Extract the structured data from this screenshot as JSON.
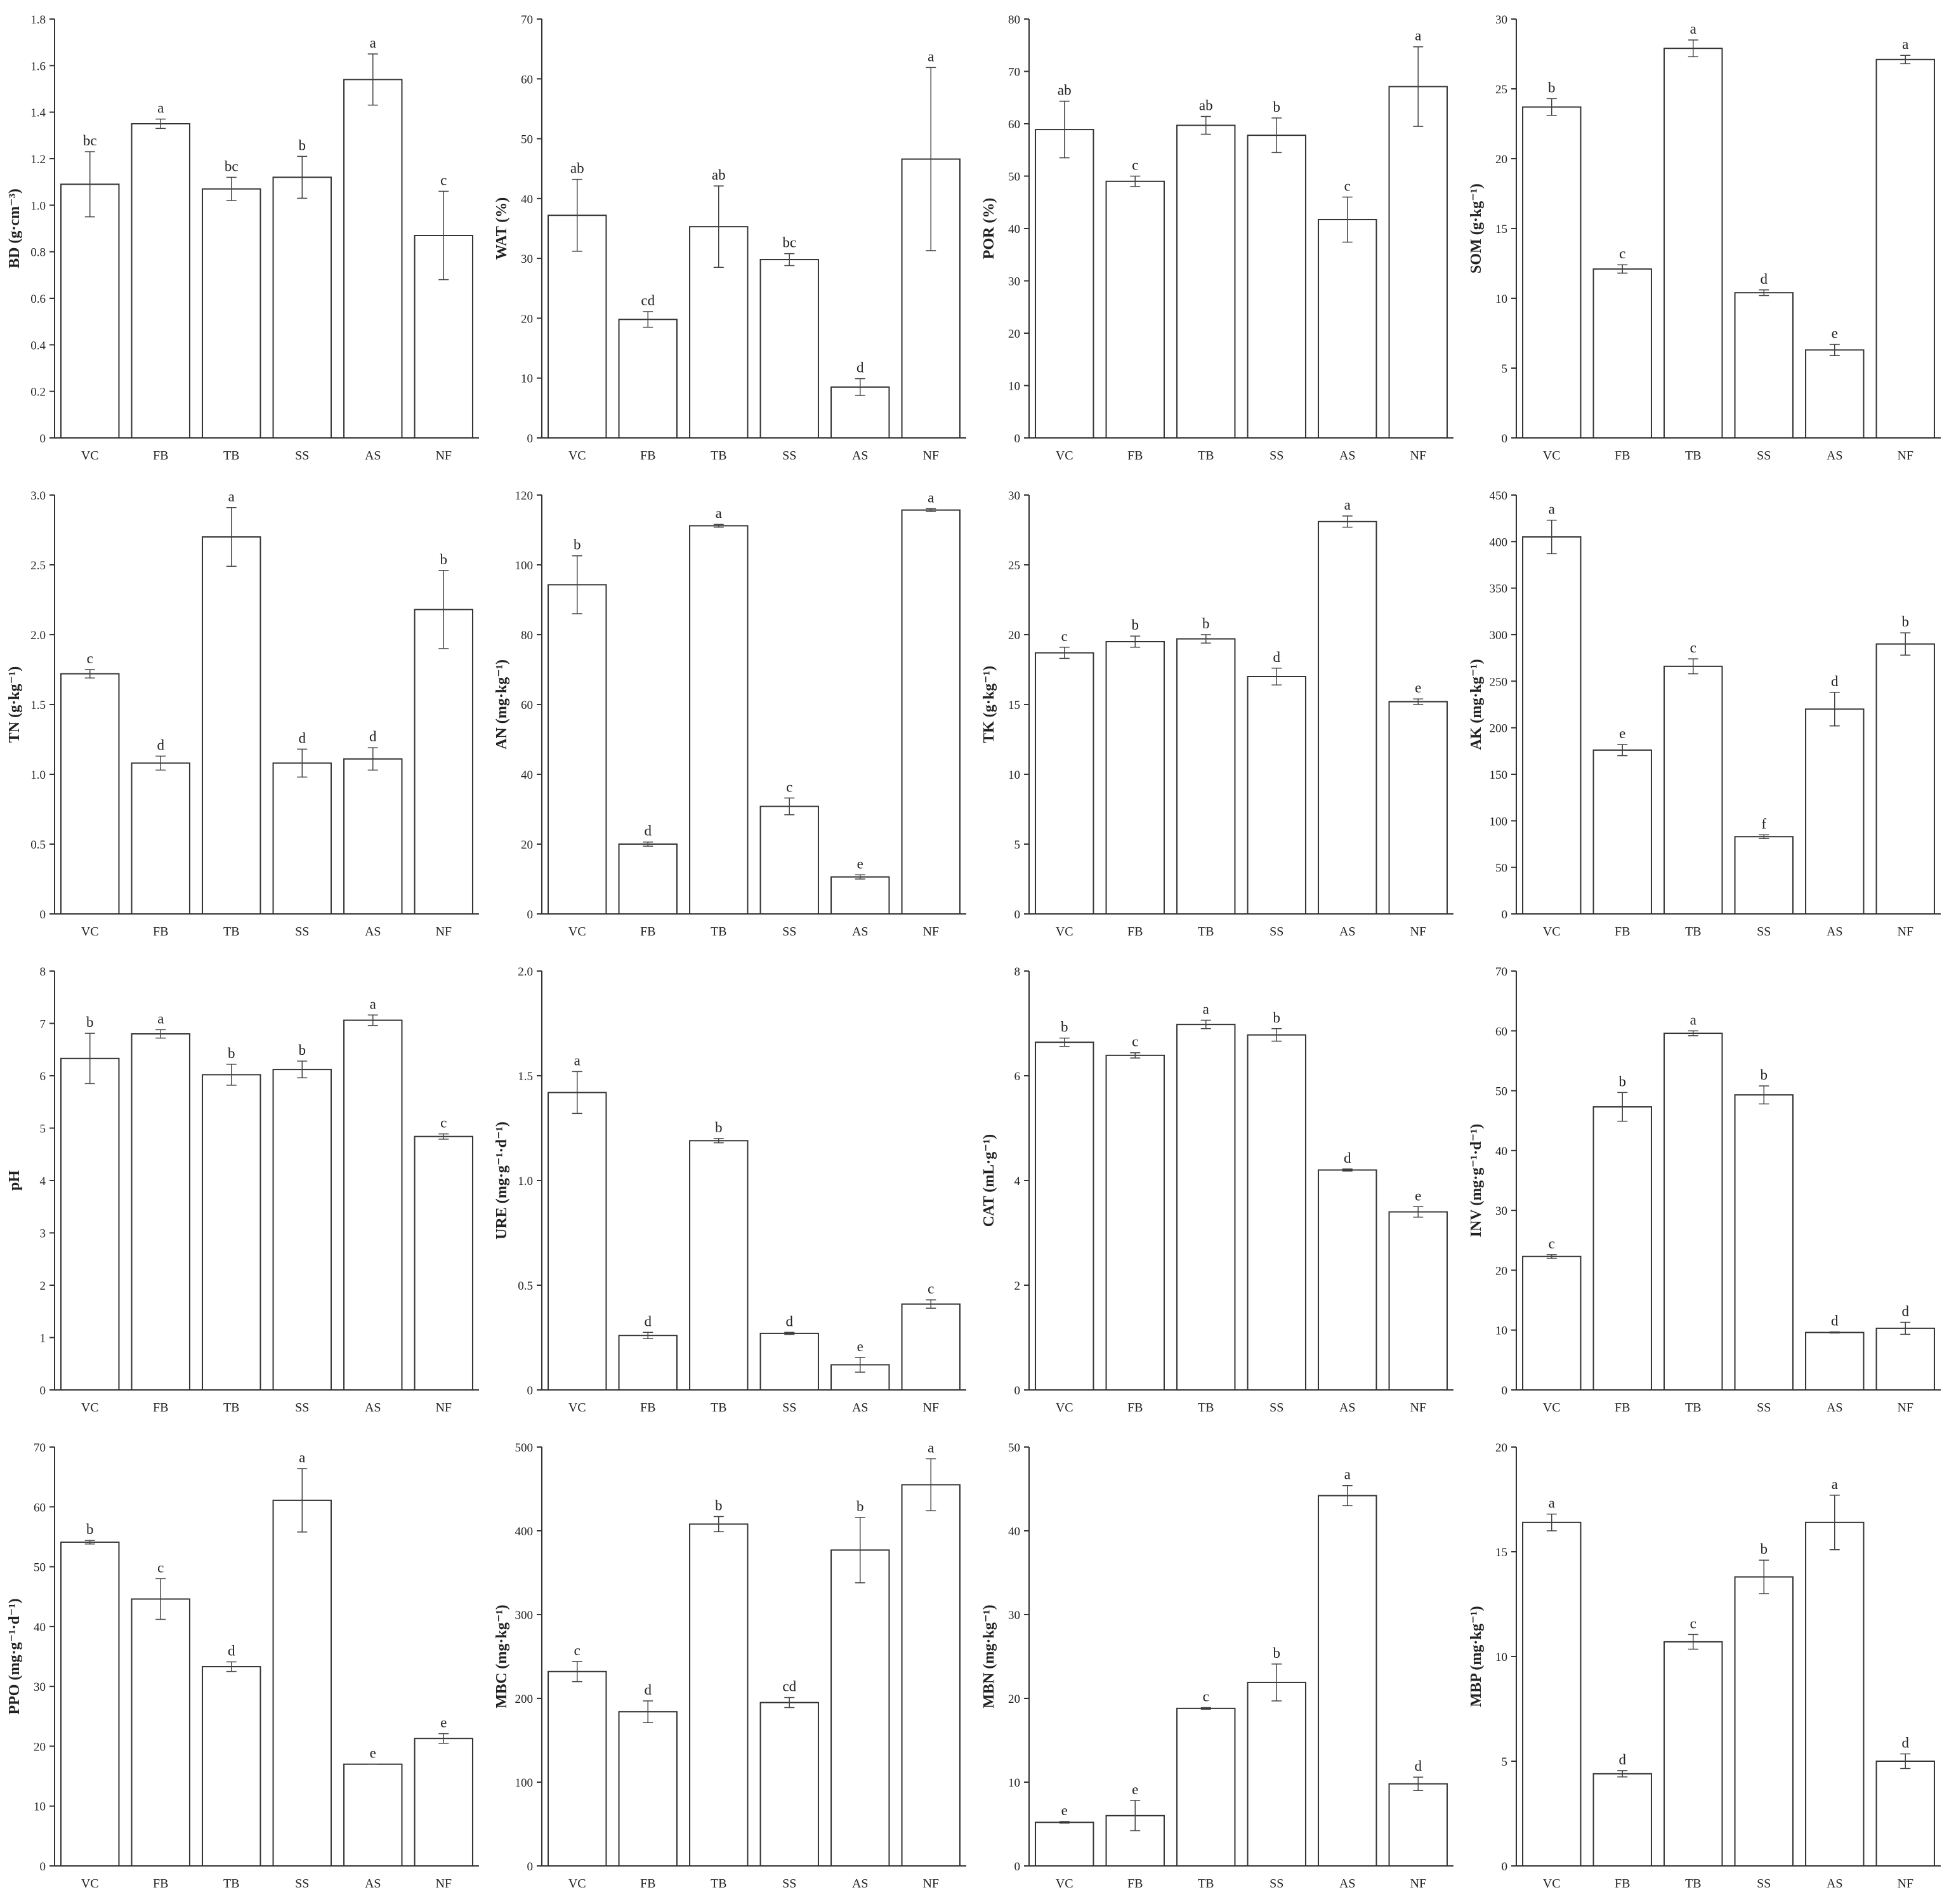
{
  "chart_data": [
    {
      "type": "bar",
      "categories": [
        "VC",
        "FB",
        "TB",
        "SS",
        "AS",
        "NF"
      ],
      "ylabel": "BD (g·cm⁻³)",
      "ylim": [
        0,
        1.8
      ],
      "yticks": [
        0,
        0.2,
        0.4,
        0.6,
        0.8,
        1.0,
        1.2,
        1.4,
        1.6,
        1.8
      ],
      "tick_labels": [
        "0",
        "0.2",
        "0.4",
        "0.6",
        "0.8",
        "1.0",
        "1.2",
        "1.4",
        "1.6",
        "1.8"
      ],
      "values": [
        1.09,
        1.35,
        1.07,
        1.12,
        1.54,
        0.87
      ],
      "errors": [
        0.14,
        0.02,
        0.05,
        0.09,
        0.11,
        0.19
      ],
      "significance": [
        "bc",
        "a",
        "bc",
        "b",
        "a",
        "c"
      ]
    },
    {
      "type": "bar",
      "categories": [
        "VC",
        "FB",
        "TB",
        "SS",
        "AS",
        "NF"
      ],
      "ylabel": "WAT (%)",
      "ylim": [
        0,
        70
      ],
      "yticks": [
        0,
        10,
        20,
        30,
        40,
        50,
        60,
        70
      ],
      "tick_labels": [
        "0",
        "10",
        "20",
        "30",
        "40",
        "50",
        "60",
        "70"
      ],
      "values": [
        37.2,
        19.8,
        35.3,
        29.8,
        8.5,
        46.6
      ],
      "errors": [
        6.0,
        1.3,
        6.8,
        1.0,
        1.4,
        15.3
      ],
      "significance": [
        "ab",
        "cd",
        "ab",
        "bc",
        "d",
        "a"
      ]
    },
    {
      "type": "bar",
      "categories": [
        "VC",
        "FB",
        "TB",
        "SS",
        "AS",
        "NF"
      ],
      "ylabel": "POR (%)",
      "ylim": [
        0,
        80
      ],
      "yticks": [
        0,
        10,
        20,
        30,
        40,
        50,
        60,
        70,
        80
      ],
      "tick_labels": [
        "0",
        "10",
        "20",
        "30",
        "40",
        "50",
        "60",
        "70",
        "80"
      ],
      "values": [
        58.9,
        49.0,
        59.7,
        57.8,
        41.7,
        67.1
      ],
      "errors": [
        5.4,
        1.0,
        1.7,
        3.3,
        4.3,
        7.6
      ],
      "significance": [
        "ab",
        "c",
        "ab",
        "b",
        "c",
        "a"
      ]
    },
    {
      "type": "bar",
      "categories": [
        "VC",
        "FB",
        "TB",
        "SS",
        "AS",
        "NF"
      ],
      "ylabel": "SOM (g·kg⁻¹)",
      "ylim": [
        0,
        30
      ],
      "yticks": [
        0,
        5,
        10,
        15,
        20,
        25,
        30
      ],
      "tick_labels": [
        "0",
        "5",
        "10",
        "15",
        "20",
        "25",
        "30"
      ],
      "values": [
        23.7,
        12.1,
        27.9,
        10.4,
        6.3,
        27.1
      ],
      "errors": [
        0.6,
        0.3,
        0.6,
        0.2,
        0.4,
        0.3
      ],
      "significance": [
        "b",
        "c",
        "a",
        "d",
        "e",
        "a"
      ]
    },
    {
      "type": "bar",
      "categories": [
        "VC",
        "FB",
        "TB",
        "SS",
        "AS",
        "NF"
      ],
      "ylabel": "TN (g·kg⁻¹)",
      "ylim": [
        0,
        3.0
      ],
      "yticks": [
        0,
        0.5,
        1.0,
        1.5,
        2.0,
        2.5,
        3.0
      ],
      "tick_labels": [
        "0",
        "0.5",
        "1.0",
        "1.5",
        "2.0",
        "2.5",
        "3.0"
      ],
      "values": [
        1.72,
        1.08,
        2.7,
        1.08,
        1.11,
        2.18
      ],
      "errors": [
        0.03,
        0.05,
        0.21,
        0.1,
        0.08,
        0.28
      ],
      "significance": [
        "c",
        "d",
        "a",
        "d",
        "d",
        "b"
      ]
    },
    {
      "type": "bar",
      "categories": [
        "VC",
        "FB",
        "TB",
        "SS",
        "AS",
        "NF"
      ],
      "ylabel": "AN (mg·kg⁻¹)",
      "ylim": [
        0,
        120
      ],
      "yticks": [
        0,
        20,
        40,
        60,
        80,
        100,
        120
      ],
      "tick_labels": [
        "0",
        "20",
        "40",
        "60",
        "80",
        "100",
        "120"
      ],
      "values": [
        94.3,
        20.0,
        111.2,
        30.8,
        10.6,
        115.7
      ],
      "errors": [
        8.3,
        0.6,
        0.4,
        2.4,
        0.6,
        0.4
      ],
      "significance": [
        "b",
        "d",
        "a",
        "c",
        "e",
        "a"
      ]
    },
    {
      "type": "bar",
      "categories": [
        "VC",
        "FB",
        "TB",
        "SS",
        "AS",
        "NF"
      ],
      "ylabel": "TK (g·kg⁻¹)",
      "ylim": [
        0,
        30
      ],
      "yticks": [
        0,
        5,
        10,
        15,
        20,
        25,
        30
      ],
      "tick_labels": [
        "0",
        "5",
        "10",
        "15",
        "20",
        "25",
        "30"
      ],
      "values": [
        18.7,
        19.5,
        19.7,
        17.0,
        28.1,
        15.2
      ],
      "errors": [
        0.4,
        0.4,
        0.3,
        0.6,
        0.4,
        0.2
      ],
      "significance": [
        "c",
        "b",
        "b",
        "d",
        "a",
        "e"
      ]
    },
    {
      "type": "bar",
      "categories": [
        "VC",
        "FB",
        "TB",
        "SS",
        "AS",
        "NF"
      ],
      "ylabel": "AK (mg·kg⁻¹)",
      "ylim": [
        0,
        450
      ],
      "yticks": [
        0,
        50,
        100,
        150,
        200,
        250,
        300,
        350,
        400,
        450
      ],
      "tick_labels": [
        "0",
        "50",
        "100",
        "150",
        "200",
        "250",
        "300",
        "350",
        "400",
        "450"
      ],
      "values": [
        405,
        176,
        266,
        83,
        220,
        290
      ],
      "errors": [
        18,
        6,
        8,
        2,
        18,
        12
      ],
      "significance": [
        "a",
        "e",
        "c",
        "f",
        "d",
        "b"
      ]
    },
    {
      "type": "bar",
      "categories": [
        "VC",
        "FB",
        "TB",
        "SS",
        "AS",
        "NF"
      ],
      "ylabel": "pH",
      "ylim": [
        0,
        8
      ],
      "yticks": [
        0,
        1,
        2,
        3,
        4,
        5,
        6,
        7,
        8
      ],
      "tick_labels": [
        "0",
        "1",
        "2",
        "3",
        "4",
        "5",
        "6",
        "7",
        "8"
      ],
      "values": [
        6.33,
        6.8,
        6.02,
        6.12,
        7.06,
        4.84
      ],
      "errors": [
        0.48,
        0.08,
        0.2,
        0.16,
        0.1,
        0.05
      ],
      "significance": [
        "b",
        "a",
        "b",
        "b",
        "a",
        "c"
      ]
    },
    {
      "type": "bar",
      "categories": [
        "VC",
        "FB",
        "TB",
        "SS",
        "AS",
        "NF"
      ],
      "ylabel": "URE (mg·g⁻¹·d⁻¹)",
      "ylim": [
        0,
        2.0
      ],
      "yticks": [
        0,
        0.5,
        1.0,
        1.5,
        2.0
      ],
      "tick_labels": [
        "0",
        "0.5",
        "1.0",
        "1.5",
        "2.0"
      ],
      "values": [
        1.42,
        0.26,
        1.19,
        0.27,
        0.12,
        0.41
      ],
      "errors": [
        0.1,
        0.015,
        0.01,
        0.005,
        0.035,
        0.02
      ],
      "significance": [
        "a",
        "d",
        "b",
        "d",
        "e",
        "c"
      ]
    },
    {
      "type": "bar",
      "categories": [
        "VC",
        "FB",
        "TB",
        "SS",
        "AS",
        "NF"
      ],
      "ylabel": "CAT (mL·g⁻¹)",
      "ylim": [
        0,
        8
      ],
      "yticks": [
        0,
        2,
        4,
        6,
        8
      ],
      "tick_labels": [
        "0",
        "2",
        "4",
        "6",
        "8"
      ],
      "values": [
        6.64,
        6.39,
        6.98,
        6.78,
        4.2,
        3.4
      ],
      "errors": [
        0.08,
        0.05,
        0.08,
        0.12,
        0.02,
        0.1
      ],
      "significance": [
        "b",
        "c",
        "a",
        "b",
        "d",
        "e"
      ]
    },
    {
      "type": "bar",
      "categories": [
        "VC",
        "FB",
        "TB",
        "SS",
        "AS",
        "NF"
      ],
      "ylabel": "INV (mg·g⁻¹·d⁻¹)",
      "ylim": [
        0,
        70
      ],
      "yticks": [
        0,
        10,
        20,
        30,
        40,
        50,
        60,
        70
      ],
      "tick_labels": [
        "0",
        "10",
        "20",
        "30",
        "40",
        "50",
        "60",
        "70"
      ],
      "values": [
        22.3,
        47.3,
        59.6,
        49.3,
        9.6,
        10.3
      ],
      "errors": [
        0.3,
        2.4,
        0.4,
        1.5,
        0.1,
        1.0
      ],
      "significance": [
        "c",
        "b",
        "a",
        "b",
        "d",
        "d"
      ]
    },
    {
      "type": "bar",
      "categories": [
        "VC",
        "FB",
        "TB",
        "SS",
        "AS",
        "NF"
      ],
      "ylabel": "PPO (mg·g⁻¹·d⁻¹)",
      "ylim": [
        0,
        70
      ],
      "yticks": [
        0,
        10,
        20,
        30,
        40,
        50,
        60,
        70
      ],
      "tick_labels": [
        "0",
        "10",
        "20",
        "30",
        "40",
        "50",
        "60",
        "70"
      ],
      "values": [
        54.1,
        44.6,
        33.3,
        61.1,
        17.0,
        21.3
      ],
      "errors": [
        0.3,
        3.4,
        0.8,
        5.3,
        0.0,
        0.8
      ],
      "significance": [
        "b",
        "c",
        "d",
        "a",
        "e",
        "e"
      ]
    },
    {
      "type": "bar",
      "categories": [
        "VC",
        "FB",
        "TB",
        "SS",
        "AS",
        "NF"
      ],
      "ylabel": "MBC (mg·kg⁻¹)",
      "ylim": [
        0,
        500
      ],
      "yticks": [
        0,
        100,
        200,
        300,
        400,
        500
      ],
      "tick_labels": [
        "0",
        "100",
        "200",
        "300",
        "400",
        "500"
      ],
      "values": [
        232,
        184,
        408,
        195,
        377,
        455
      ],
      "errors": [
        12,
        13,
        9,
        6,
        39,
        31
      ],
      "significance": [
        "c",
        "d",
        "b",
        "cd",
        "b",
        "a"
      ]
    },
    {
      "type": "bar",
      "categories": [
        "VC",
        "FB",
        "TB",
        "SS",
        "AS",
        "NF"
      ],
      "ylabel": "MBN (mg·kg⁻¹)",
      "ylim": [
        0,
        50
      ],
      "yticks": [
        0,
        10,
        20,
        30,
        40,
        50
      ],
      "tick_labels": [
        "0",
        "10",
        "20",
        "30",
        "40",
        "50"
      ],
      "values": [
        5.2,
        6.0,
        18.8,
        21.9,
        44.2,
        9.8
      ],
      "errors": [
        0.1,
        1.8,
        0.1,
        2.2,
        1.2,
        0.8
      ],
      "significance": [
        "e",
        "e",
        "c",
        "b",
        "a",
        "d"
      ]
    },
    {
      "type": "bar",
      "categories": [
        "VC",
        "FB",
        "TB",
        "SS",
        "AS",
        "NF"
      ],
      "ylabel": "MBP (mg·kg⁻¹)",
      "ylim": [
        0,
        20
      ],
      "yticks": [
        0,
        5,
        10,
        15,
        20
      ],
      "tick_labels": [
        "0",
        "5",
        "10",
        "15",
        "20"
      ],
      "values": [
        16.4,
        4.4,
        10.7,
        13.8,
        16.4,
        5.0
      ],
      "errors": [
        0.4,
        0.15,
        0.35,
        0.8,
        1.3,
        0.35
      ],
      "significance": [
        "a",
        "d",
        "c",
        "b",
        "a",
        "d"
      ]
    }
  ]
}
